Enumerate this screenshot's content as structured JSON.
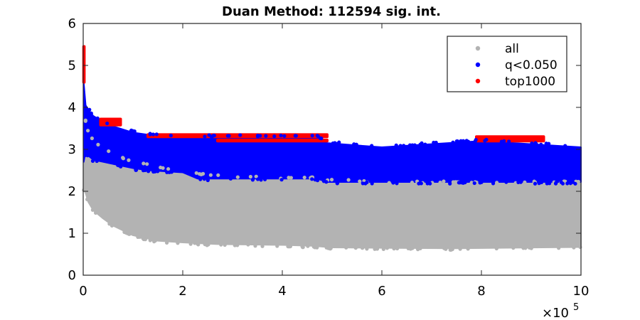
{
  "chart_data": {
    "type": "scatter",
    "title": "Duan Method: 112594 sig. int.",
    "xlabel": "",
    "ylabel": "",
    "xlim": [
      0,
      1000000
    ],
    "ylim": [
      0,
      6
    ],
    "x_ticks": [
      0,
      200000,
      400000,
      600000,
      800000,
      1000000
    ],
    "x_tick_labels": [
      "0",
      "2",
      "4",
      "6",
      "8",
      "10"
    ],
    "x_exponent_label": "×10",
    "x_exponent_power": "5",
    "y_ticks": [
      0,
      1,
      2,
      3,
      4,
      5,
      6
    ],
    "y_tick_labels": [
      "0",
      "1",
      "2",
      "3",
      "4",
      "5",
      "6"
    ],
    "grid": false,
    "legend_position": "top-right",
    "series": [
      {
        "name": "all",
        "color": "#b3b3b3",
        "bands": [
          {
            "x": 1000,
            "low": 2.05,
            "high": 3.9
          },
          {
            "x": 5000,
            "low": 1.95,
            "high": 3.65
          },
          {
            "x": 10000,
            "low": 1.75,
            "high": 3.4
          },
          {
            "x": 20000,
            "low": 1.55,
            "high": 3.2
          },
          {
            "x": 40000,
            "low": 1.35,
            "high": 3.0
          },
          {
            "x": 60000,
            "low": 1.18,
            "high": 2.85
          },
          {
            "x": 100000,
            "low": 0.95,
            "high": 2.7
          },
          {
            "x": 150000,
            "low": 0.82,
            "high": 2.55
          },
          {
            "x": 200000,
            "low": 0.78,
            "high": 2.45
          },
          {
            "x": 270000,
            "low": 0.74,
            "high": 2.35
          },
          {
            "x": 400000,
            "low": 0.72,
            "high": 2.3
          },
          {
            "x": 460000,
            "low": 0.7,
            "high": 2.3
          },
          {
            "x": 500000,
            "low": 0.66,
            "high": 2.25
          },
          {
            "x": 600000,
            "low": 0.65,
            "high": 2.2
          },
          {
            "x": 750000,
            "low": 0.64,
            "high": 2.2
          },
          {
            "x": 1000000,
            "low": 0.67,
            "high": 2.2
          }
        ]
      },
      {
        "name": "q<0.050",
        "color": "#0000ff",
        "bands": [
          {
            "x": 1000,
            "low": 2.7,
            "high": 4.6
          },
          {
            "x": 5000,
            "low": 2.95,
            "high": 4.05
          },
          {
            "x": 10000,
            "low": 2.85,
            "high": 3.95
          },
          {
            "x": 20000,
            "low": 2.75,
            "high": 3.8
          },
          {
            "x": 40000,
            "low": 2.7,
            "high": 3.65
          },
          {
            "x": 60000,
            "low": 2.65,
            "high": 3.55
          },
          {
            "x": 100000,
            "low": 2.55,
            "high": 3.4
          },
          {
            "x": 130000,
            "low": 2.5,
            "high": 3.35
          },
          {
            "x": 200000,
            "low": 2.45,
            "high": 3.3
          },
          {
            "x": 230000,
            "low": 2.3,
            "high": 3.3
          },
          {
            "x": 470000,
            "low": 2.3,
            "high": 3.3
          },
          {
            "x": 490000,
            "low": 2.22,
            "high": 3.15
          },
          {
            "x": 600000,
            "low": 2.22,
            "high": 3.05
          },
          {
            "x": 800000,
            "low": 2.22,
            "high": 3.2
          },
          {
            "x": 1000000,
            "low": 2.22,
            "high": 3.05
          }
        ]
      },
      {
        "name": "top1000",
        "color": "#ff0000",
        "segments": [
          {
            "x0": 1000,
            "x1": 2000,
            "y0": 4.6,
            "y1": 5.45
          },
          {
            "x0": 35000,
            "x1": 75000,
            "y0": 3.58,
            "y1": 3.72
          },
          {
            "x0": 130000,
            "x1": 490000,
            "y0": 3.3,
            "y1": 3.35
          },
          {
            "x0": 270000,
            "x1": 490000,
            "y0": 3.2,
            "y1": 3.22
          },
          {
            "x0": 790000,
            "x1": 925000,
            "y0": 3.2,
            "y1": 3.3
          }
        ]
      }
    ]
  }
}
